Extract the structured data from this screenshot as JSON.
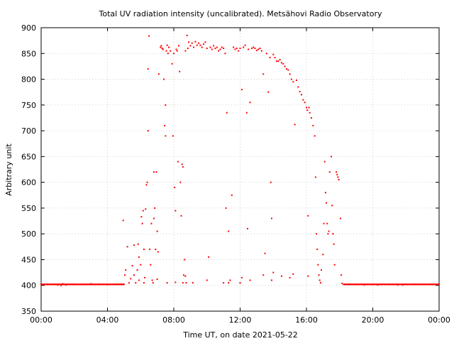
{
  "chart_data": {
    "type": "scatter",
    "title": "Total UV radiation intensity (uncalibrated). Metsähovi Radio Observatory",
    "xlabel": "Time UT, on date 2021-05-22",
    "ylabel": "Arbitrary unit",
    "xlim": [
      0,
      24
    ],
    "ylim": [
      350,
      900
    ],
    "x_ticks": [
      {
        "value": 0,
        "label": "00:00"
      },
      {
        "value": 4,
        "label": "04:00"
      },
      {
        "value": 8,
        "label": "08:00"
      },
      {
        "value": 12,
        "label": "12:00"
      },
      {
        "value": 16,
        "label": "16:00"
      },
      {
        "value": 20,
        "label": "20:00"
      },
      {
        "value": 24,
        "label": "00:00"
      }
    ],
    "y_ticks": [
      350,
      400,
      450,
      500,
      550,
      600,
      650,
      700,
      750,
      800,
      850,
      900
    ],
    "grid": true,
    "color": "#ff0000",
    "series": [
      {
        "name": "",
        "points": [
          [
            0.0,
            402
          ],
          [
            0.4,
            402
          ],
          [
            0.8,
            402
          ],
          [
            1.0,
            401
          ],
          [
            1.2,
            400
          ],
          [
            1.3,
            403
          ],
          [
            1.5,
            401
          ],
          [
            2.0,
            402
          ],
          [
            2.5,
            402
          ],
          [
            3.0,
            403
          ],
          [
            3.5,
            402
          ],
          [
            4.0,
            402
          ],
          [
            4.5,
            402
          ],
          [
            5.0,
            402
          ],
          [
            4.95,
            526
          ],
          [
            5.05,
            420
          ],
          [
            5.1,
            430
          ],
          [
            5.2,
            475
          ],
          [
            5.3,
            405
          ],
          [
            5.4,
            413
          ],
          [
            5.5,
            438
          ],
          [
            5.6,
            420
          ],
          [
            5.7,
            405
          ],
          [
            5.8,
            430
          ],
          [
            5.85,
            480
          ],
          [
            5.9,
            455
          ],
          [
            6.0,
            440
          ],
          [
            6.05,
            533
          ],
          [
            6.1,
            520
          ],
          [
            6.15,
            545
          ],
          [
            6.2,
            470
          ],
          [
            6.25,
            415
          ],
          [
            6.3,
            548
          ],
          [
            6.35,
            595
          ],
          [
            6.4,
            600
          ],
          [
            6.45,
            700
          ],
          [
            6.5,
            884
          ],
          [
            6.55,
            470
          ],
          [
            6.6,
            440
          ],
          [
            6.65,
            520
          ],
          [
            6.7,
            410
          ],
          [
            6.75,
            405
          ],
          [
            6.8,
            530
          ],
          [
            6.85,
            550
          ],
          [
            6.9,
            470
          ],
          [
            6.95,
            620
          ],
          [
            7.0,
            505
          ],
          [
            7.05,
            465
          ],
          [
            7.1,
            810
          ],
          [
            7.2,
            862
          ],
          [
            7.25,
            865
          ],
          [
            7.3,
            860
          ],
          [
            7.35,
            858
          ],
          [
            7.4,
            800
          ],
          [
            7.45,
            710
          ],
          [
            7.5,
            690
          ],
          [
            7.55,
            855
          ],
          [
            7.6,
            866
          ],
          [
            7.65,
            850
          ],
          [
            7.7,
            862
          ],
          [
            7.8,
            855
          ],
          [
            7.9,
            830
          ],
          [
            7.95,
            690
          ],
          [
            8.0,
            850
          ],
          [
            8.05,
            590
          ],
          [
            8.1,
            545
          ],
          [
            8.15,
            858
          ],
          [
            8.2,
            855
          ],
          [
            8.25,
            640
          ],
          [
            8.3,
            865
          ],
          [
            8.35,
            815
          ],
          [
            8.4,
            600
          ],
          [
            8.45,
            535
          ],
          [
            8.5,
            635
          ],
          [
            8.55,
            630
          ],
          [
            8.6,
            420
          ],
          [
            8.65,
            450
          ],
          [
            8.7,
            855
          ],
          [
            8.8,
            885
          ],
          [
            8.85,
            860
          ],
          [
            8.9,
            872
          ],
          [
            9.0,
            865
          ],
          [
            9.1,
            870
          ],
          [
            9.2,
            862
          ],
          [
            9.3,
            873
          ],
          [
            9.4,
            866
          ],
          [
            9.5,
            870
          ],
          [
            9.6,
            866
          ],
          [
            9.7,
            862
          ],
          [
            9.8,
            868
          ],
          [
            9.9,
            872
          ],
          [
            10.0,
            860
          ],
          [
            10.1,
            455
          ],
          [
            10.2,
            862
          ],
          [
            10.3,
            858
          ],
          [
            10.4,
            865
          ],
          [
            10.5,
            860
          ],
          [
            10.6,
            862
          ],
          [
            10.7,
            855
          ],
          [
            10.8,
            858
          ],
          [
            10.9,
            862
          ],
          [
            11.0,
            860
          ],
          [
            11.1,
            850
          ],
          [
            11.15,
            550
          ],
          [
            11.2,
            735
          ],
          [
            11.3,
            505
          ],
          [
            11.4,
            410
          ],
          [
            11.5,
            575
          ],
          [
            11.6,
            862
          ],
          [
            11.7,
            858
          ],
          [
            11.8,
            860
          ],
          [
            11.9,
            855
          ],
          [
            12.0,
            860
          ],
          [
            12.1,
            780
          ],
          [
            12.2,
            862
          ],
          [
            12.3,
            866
          ],
          [
            12.4,
            735
          ],
          [
            12.45,
            510
          ],
          [
            12.5,
            858
          ],
          [
            12.6,
            755
          ],
          [
            12.7,
            860
          ],
          [
            12.8,
            862
          ],
          [
            12.9,
            860
          ],
          [
            13.0,
            856
          ],
          [
            13.1,
            858
          ],
          [
            13.2,
            860
          ],
          [
            13.3,
            855
          ],
          [
            13.4,
            810
          ],
          [
            13.5,
            462
          ],
          [
            13.6,
            850
          ],
          [
            13.7,
            775
          ],
          [
            13.8,
            842
          ],
          [
            13.85,
            600
          ],
          [
            13.9,
            530
          ],
          [
            14.0,
            848
          ],
          [
            14.1,
            842
          ],
          [
            14.2,
            835
          ],
          [
            14.3,
            835
          ],
          [
            14.4,
            838
          ],
          [
            14.5,
            832
          ],
          [
            14.6,
            830
          ],
          [
            14.7,
            825
          ],
          [
            14.8,
            820
          ],
          [
            14.9,
            818
          ],
          [
            15.0,
            810
          ],
          [
            15.1,
            800
          ],
          [
            15.2,
            795
          ],
          [
            15.3,
            712
          ],
          [
            15.4,
            798
          ],
          [
            15.5,
            785
          ],
          [
            15.6,
            776
          ],
          [
            15.7,
            770
          ],
          [
            15.8,
            760
          ],
          [
            15.9,
            755
          ],
          [
            16.0,
            745
          ],
          [
            16.05,
            740
          ],
          [
            16.1,
            535
          ],
          [
            16.15,
            745
          ],
          [
            16.2,
            735
          ],
          [
            16.3,
            725
          ],
          [
            16.4,
            710
          ],
          [
            16.5,
            690
          ],
          [
            16.55,
            610
          ],
          [
            16.6,
            500
          ],
          [
            16.65,
            470
          ],
          [
            16.7,
            440
          ],
          [
            16.75,
            420
          ],
          [
            16.8,
            410
          ],
          [
            16.85,
            405
          ],
          [
            16.9,
            430
          ],
          [
            17.0,
            460
          ],
          [
            17.05,
            520
          ],
          [
            17.1,
            640
          ],
          [
            17.15,
            580
          ],
          [
            17.2,
            560
          ],
          [
            17.25,
            520
          ],
          [
            17.3,
            500
          ],
          [
            17.35,
            505
          ],
          [
            17.4,
            620
          ],
          [
            17.5,
            650
          ],
          [
            17.55,
            555
          ],
          [
            17.6,
            500
          ],
          [
            17.65,
            480
          ],
          [
            17.7,
            440
          ],
          [
            17.8,
            620
          ],
          [
            17.85,
            615
          ],
          [
            17.9,
            610
          ],
          [
            17.95,
            605
          ],
          [
            18.05,
            530
          ],
          [
            18.1,
            420
          ],
          [
            18.15,
            404
          ],
          [
            18.3,
            402
          ],
          [
            18.6,
            402
          ],
          [
            19.0,
            402
          ],
          [
            19.5,
            401
          ],
          [
            20.0,
            402
          ],
          [
            20.3,
            401
          ],
          [
            20.5,
            402
          ],
          [
            21.0,
            402
          ],
          [
            21.5,
            401
          ],
          [
            21.8,
            401
          ],
          [
            22.0,
            402
          ],
          [
            22.5,
            402
          ],
          [
            23.0,
            402
          ],
          [
            23.5,
            402
          ],
          [
            24.0,
            402
          ],
          [
            6.45,
            820
          ],
          [
            6.8,
            620
          ],
          [
            7.5,
            750
          ],
          [
            8.7,
            418
          ],
          [
            8.75,
            405
          ],
          [
            9.15,
            405
          ],
          [
            10.0,
            410
          ],
          [
            11.0,
            405
          ],
          [
            11.3,
            405
          ],
          [
            12.0,
            405
          ],
          [
            12.1,
            415
          ],
          [
            12.6,
            410
          ],
          [
            13.4,
            420
          ],
          [
            13.9,
            410
          ],
          [
            14.0,
            425
          ],
          [
            14.5,
            418
          ],
          [
            15.0,
            415
          ],
          [
            15.2,
            422
          ],
          [
            16.1,
            418
          ],
          [
            5.6,
            478
          ],
          [
            5.9,
            410
          ],
          [
            6.2,
            405
          ],
          [
            7.0,
            412
          ],
          [
            7.6,
            405
          ],
          [
            8.1,
            406
          ],
          [
            8.55,
            405
          ]
        ]
      }
    ]
  }
}
